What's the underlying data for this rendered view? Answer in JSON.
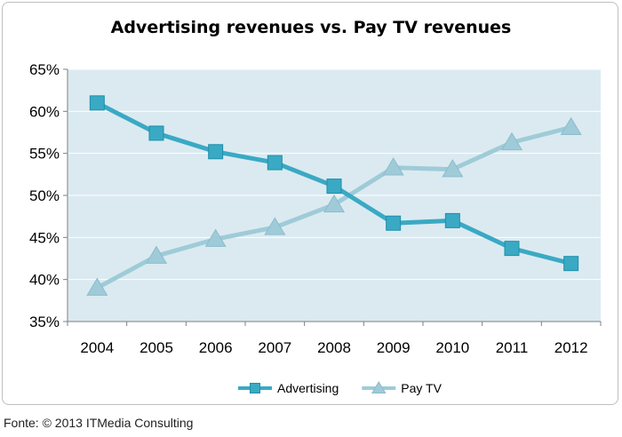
{
  "chart_data": {
    "type": "line",
    "title": "Advertising revenues vs. Pay TV revenues",
    "categories": [
      "2004",
      "2005",
      "2006",
      "2007",
      "2008",
      "2009",
      "2010",
      "2011",
      "2012"
    ],
    "series": [
      {
        "name": "Advertising",
        "marker": "square",
        "color": "#3aa9c4",
        "values": [
          61.0,
          57.4,
          55.2,
          53.9,
          51.1,
          46.7,
          47.0,
          43.7,
          41.9
        ]
      },
      {
        "name": "Pay TV",
        "marker": "triangle",
        "color": "#9fcbd8",
        "values": [
          39.0,
          42.8,
          44.8,
          46.2,
          48.9,
          53.3,
          53.1,
          56.3,
          58.1
        ]
      }
    ],
    "ylim": [
      35,
      65
    ],
    "yticks": [
      "35%",
      "40%",
      "45%",
      "50%",
      "55%",
      "60%",
      "65%"
    ],
    "grid": true,
    "plot_background": "#dbeaf1",
    "legend_position": "bottom"
  },
  "source_note": "Fonte: © 2013 ITMedia Consulting"
}
